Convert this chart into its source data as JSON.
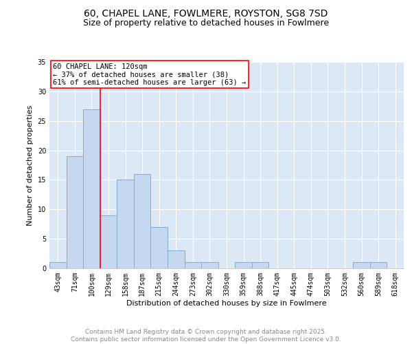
{
  "title1": "60, CHAPEL LANE, FOWLMERE, ROYSTON, SG8 7SD",
  "title2": "Size of property relative to detached houses in Fowlmere",
  "xlabel": "Distribution of detached houses by size in Fowlmere",
  "ylabel": "Number of detached properties",
  "categories": [
    "43sqm",
    "71sqm",
    "100sqm",
    "129sqm",
    "158sqm",
    "187sqm",
    "215sqm",
    "244sqm",
    "273sqm",
    "302sqm",
    "330sqm",
    "359sqm",
    "388sqm",
    "417sqm",
    "445sqm",
    "474sqm",
    "503sqm",
    "532sqm",
    "560sqm",
    "589sqm",
    "618sqm"
  ],
  "values": [
    1,
    19,
    27,
    9,
    15,
    16,
    7,
    3,
    1,
    1,
    0,
    1,
    1,
    0,
    0,
    0,
    0,
    0,
    1,
    1,
    0
  ],
  "bar_color": "#c5d8ef",
  "bar_edge_color": "#7bafd4",
  "vline_color": "red",
  "vline_index": 2.5,
  "annotation_text": "60 CHAPEL LANE: 120sqm\n← 37% of detached houses are smaller (38)\n61% of semi-detached houses are larger (63) →",
  "annotation_box_color": "white",
  "annotation_box_edge": "red",
  "ylim": [
    0,
    35
  ],
  "yticks": [
    0,
    5,
    10,
    15,
    20,
    25,
    30,
    35
  ],
  "background_color": "#dce8f5",
  "footer_text": "Contains HM Land Registry data © Crown copyright and database right 2025.\nContains public sector information licensed under the Open Government Licence v3.0.",
  "title_fontsize": 10,
  "subtitle_fontsize": 9,
  "axis_label_fontsize": 8,
  "tick_fontsize": 7,
  "annotation_fontsize": 7.5,
  "footer_fontsize": 6.5
}
